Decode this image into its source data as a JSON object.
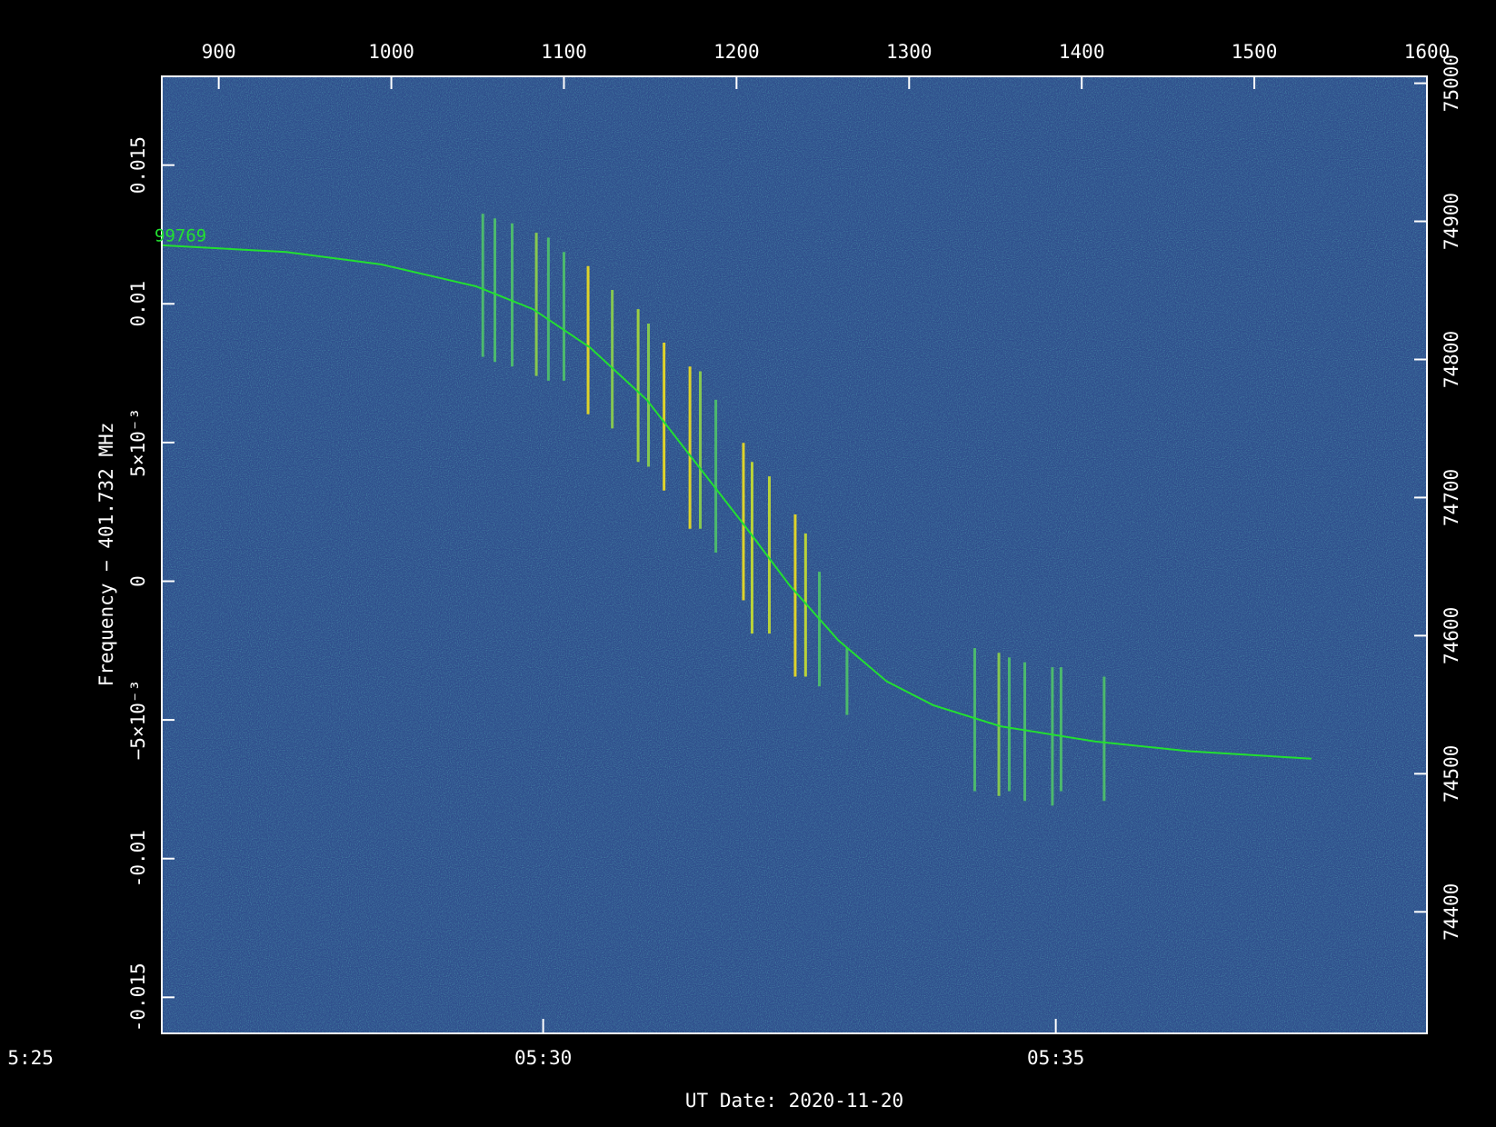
{
  "chart_data": {
    "type": "spectrogram",
    "xlabel": "UT Date: 2020-11-20",
    "ylabel": "Frequency − 401.732 MHz",
    "background": "#2f4d8c",
    "xlim": [
      867,
      1600
    ],
    "xticks": [
      900,
      1000,
      1100,
      1200,
      1300,
      1400,
      1500,
      1600
    ],
    "tlim": [
      26.28,
      38.62
    ],
    "tticks": [
      {
        "value": 25,
        "label": "5:25"
      },
      {
        "value": 30,
        "label": "05:30"
      },
      {
        "value": 35,
        "label": "05:35"
      }
    ],
    "ylim": [
      -0.0163,
      0.0182
    ],
    "yticks": [
      -0.015,
      -0.01,
      {
        "value": -0.005,
        "label": "−5×10⁻³"
      },
      0,
      {
        "value": 0.005,
        "label": "5×10⁻³"
      },
      0.01,
      0.015
    ],
    "y2lim": [
      74312,
      75005
    ],
    "y2ticks": [
      74400,
      74500,
      74600,
      74700,
      74800,
      74900,
      75000
    ],
    "curve": {
      "label": "99769",
      "color": "#22e030",
      "x": [
        867,
        939,
        994,
        1049,
        1082,
        1115,
        1148,
        1176,
        1204,
        1231,
        1259,
        1287,
        1314,
        1353,
        1408,
        1463,
        1533
      ],
      "values": [
        0.01211,
        0.01187,
        0.01142,
        0.01063,
        0.00981,
        0.00843,
        0.00654,
        0.0043,
        0.00206,
        -0.00017,
        -0.00213,
        -0.00361,
        -0.00447,
        -0.00523,
        -0.00578,
        -0.00613,
        -0.0064
      ]
    },
    "streaks": [
      {
        "x": 1053,
        "f": [
          0.01325,
          0.00809
        ],
        "color": "#4fc46a"
      },
      {
        "x": 1060,
        "f": [
          0.01308,
          0.00791
        ],
        "color": "#4fc46a"
      },
      {
        "x": 1070,
        "f": [
          0.0129,
          0.00774
        ],
        "color": "#4fc46a"
      },
      {
        "x": 1084,
        "f": [
          0.01256,
          0.0074
        ],
        "color": "#8fd44a"
      },
      {
        "x": 1091,
        "f": [
          0.01239,
          0.00723
        ],
        "color": "#4fc46a"
      },
      {
        "x": 1100,
        "f": [
          0.01187,
          0.00723
        ],
        "color": "#4fc46a"
      },
      {
        "x": 1114,
        "f": [
          0.01136,
          0.00602
        ],
        "color": "#f0e020"
      },
      {
        "x": 1128,
        "f": [
          0.0105,
          0.00551
        ],
        "color": "#8fd44a"
      },
      {
        "x": 1143,
        "f": [
          0.00981,
          0.0043
        ],
        "color": "#a8dc3a"
      },
      {
        "x": 1149,
        "f": [
          0.00929,
          0.00413
        ],
        "color": "#8fd44a"
      },
      {
        "x": 1158,
        "f": [
          0.0086,
          0.00327
        ],
        "color": "#f0e020"
      },
      {
        "x": 1173,
        "f": [
          0.00774,
          0.00189
        ],
        "color": "#f0e020"
      },
      {
        "x": 1179,
        "f": [
          0.00757,
          0.00189
        ],
        "color": "#8fd44a"
      },
      {
        "x": 1188,
        "f": [
          0.00654,
          0.00103
        ],
        "color": "#4fc46a"
      },
      {
        "x": 1204,
        "f": [
          0.00499,
          -0.00069
        ],
        "color": "#f0e020"
      },
      {
        "x": 1209,
        "f": [
          0.0043,
          -0.00189
        ],
        "color": "#c8e030"
      },
      {
        "x": 1219,
        "f": [
          0.00378,
          -0.00189
        ],
        "color": "#c8e030"
      },
      {
        "x": 1234,
        "f": [
          0.00241,
          -0.00344
        ],
        "color": "#f0e020"
      },
      {
        "x": 1240,
        "f": [
          0.00172,
          -0.00344
        ],
        "color": "#c8e030"
      },
      {
        "x": 1248,
        "f": [
          0.00034,
          -0.00379
        ],
        "color": "#4fc46a"
      },
      {
        "x": 1264,
        "f": [
          -0.00241,
          -0.00482
        ],
        "color": "#4fc46a"
      },
      {
        "x": 1338,
        "f": [
          -0.00241,
          -0.00757
        ],
        "color": "#4fc46a"
      },
      {
        "x": 1352,
        "f": [
          -0.00258,
          -0.00774
        ],
        "color": "#8fd44a"
      },
      {
        "x": 1358,
        "f": [
          -0.00275,
          -0.00757
        ],
        "color": "#4fc46a"
      },
      {
        "x": 1367,
        "f": [
          -0.00292,
          -0.00792
        ],
        "color": "#4fc46a"
      },
      {
        "x": 1383,
        "f": [
          -0.0031,
          -0.00809
        ],
        "color": "#4fc46a"
      },
      {
        "x": 1388,
        "f": [
          -0.0031,
          -0.00757
        ],
        "color": "#4fc46a"
      },
      {
        "x": 1413,
        "f": [
          -0.00344,
          -0.00792
        ],
        "color": "#4fc46a"
      }
    ]
  }
}
